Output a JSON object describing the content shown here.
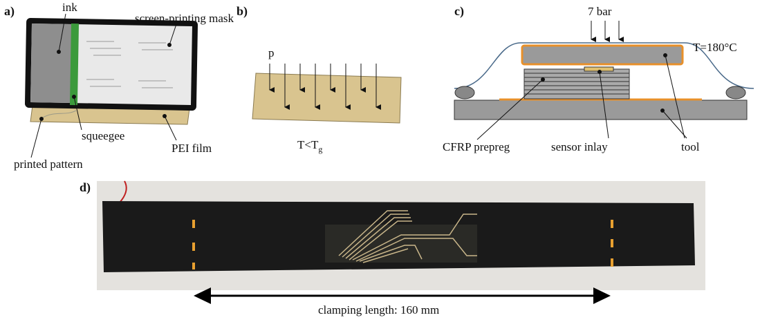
{
  "panels": [
    {
      "label": "a)",
      "texts": [
        "ink",
        "screen-printing mask",
        "squeegee",
        "PEI film",
        "printed pattern"
      ]
    },
    {
      "label": "b)",
      "texts": [
        "p"
      ],
      "temperature": {
        "text": "T<T",
        "subscript": "g"
      }
    },
    {
      "label": "c)",
      "texts": [
        "7 bar",
        "T=180°C",
        "CFRP prepreg",
        "sensor inlay",
        "tool"
      ]
    },
    {
      "label": "d)",
      "texts": [
        "clamping length: 160 mm"
      ]
    }
  ]
}
